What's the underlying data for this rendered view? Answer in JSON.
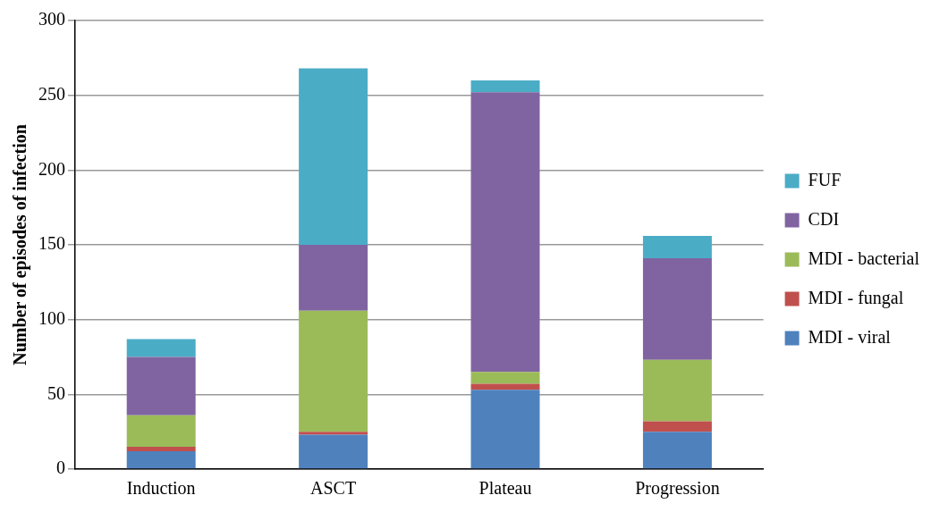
{
  "chart_data": {
    "type": "bar",
    "stacked": true,
    "ylabel": "Number of episodes of infection",
    "categories": [
      "Induction",
      "ASCT",
      "Plateau",
      "Progression"
    ],
    "series": [
      {
        "name": "MDI - viral",
        "color": "#4f81bd",
        "values": [
          12,
          23,
          53,
          25
        ]
      },
      {
        "name": "MDI - fungal",
        "color": "#c0504d",
        "values": [
          3,
          2,
          4,
          7
        ]
      },
      {
        "name": "MDI - bacterial",
        "color": "#9bbb59",
        "values": [
          21,
          81,
          8,
          41
        ]
      },
      {
        "name": "CDI",
        "color": "#8064a2",
        "values": [
          39,
          44,
          187,
          68
        ]
      },
      {
        "name": "FUF",
        "color": "#4bacc6",
        "values": [
          12,
          118,
          8,
          15
        ]
      }
    ],
    "ylim": [
      0,
      300
    ],
    "yticks": [
      0,
      50,
      100,
      150,
      200,
      250,
      300
    ],
    "grid": "y",
    "legend": "right"
  }
}
